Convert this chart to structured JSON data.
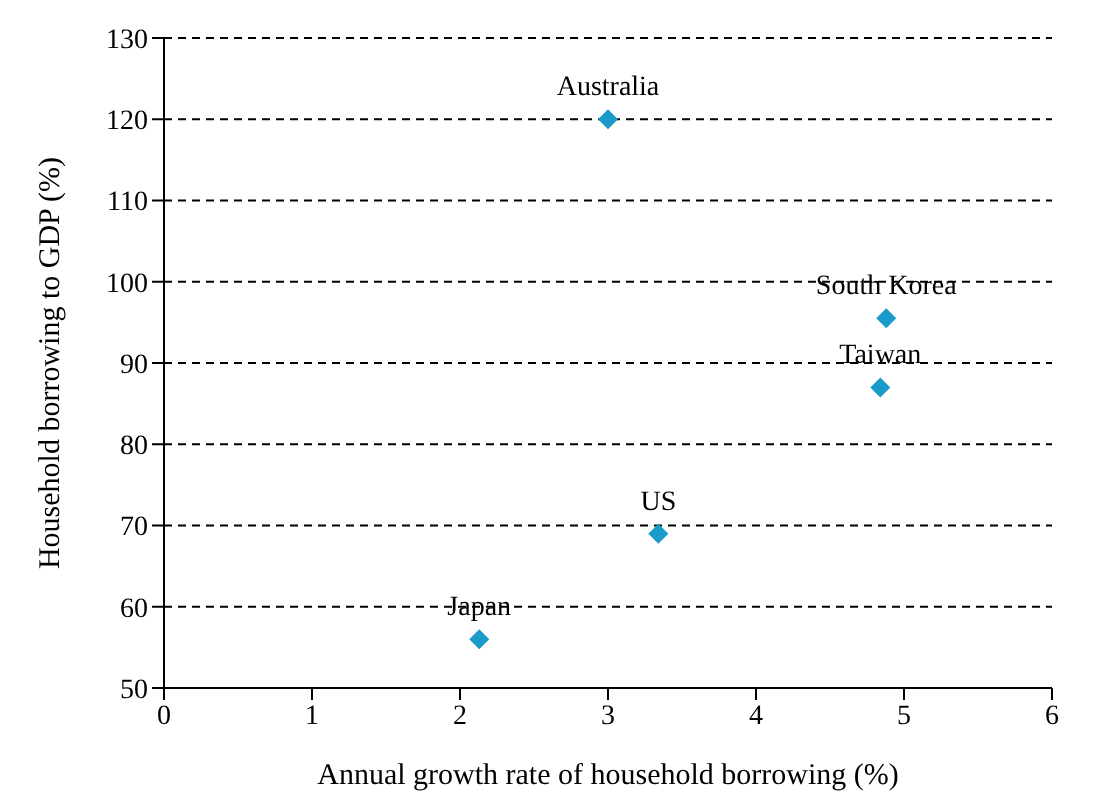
{
  "chart_data": {
    "type": "scatter",
    "xlabel": "Annual growth rate of household borrowing (%)",
    "ylabel": "Household borrowing to GDP (%)",
    "x": [
      3.0,
      4.88,
      4.84,
      3.34,
      2.13
    ],
    "values": [
      120,
      95.5,
      87,
      69,
      56
    ],
    "color": "#1a9bc9",
    "marker": "diamond",
    "xlim": [
      0,
      6
    ],
    "xticks": [
      0,
      1,
      2,
      3,
      4,
      5,
      6
    ],
    "ylim": [
      50,
      130
    ],
    "yticks": [
      50,
      60,
      70,
      80,
      90,
      100,
      110,
      120,
      130
    ],
    "grid": "y",
    "annotations": [
      {
        "text": "Australia",
        "x": 3.0,
        "y": 120
      },
      {
        "text": "South Korea",
        "x": 4.88,
        "y": 95.5
      },
      {
        "text": "Taiwan",
        "x": 4.84,
        "y": 87
      },
      {
        "text": "US",
        "x": 3.34,
        "y": 69
      },
      {
        "text": "Japan",
        "x": 2.13,
        "y": 56
      }
    ]
  }
}
